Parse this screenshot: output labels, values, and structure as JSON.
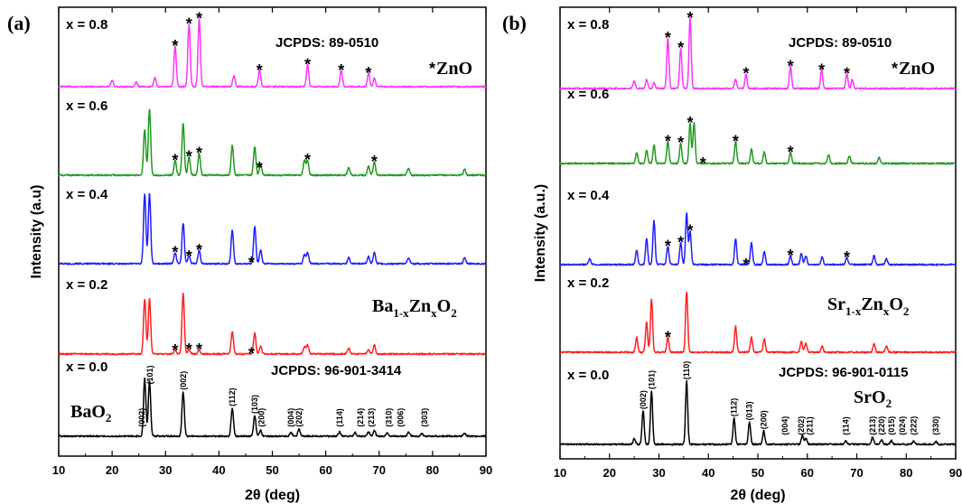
{
  "chart_data": [
    {
      "type": "line",
      "panel_label": "(a)",
      "ylabel": "Intensity (a.u)",
      "xlabel": "2θ (deg)",
      "xlim": [
        10,
        90
      ],
      "xticks": [
        10,
        20,
        30,
        40,
        50,
        60,
        70,
        80,
        90
      ],
      "ref_label": "JCPDS: 89-0510",
      "zno_label": "ZnO",
      "bottom_ref_label": "JCPDS: 96-901-3414",
      "phase_label": {
        "base": "BaO",
        "sub": "2"
      },
      "formula_label": {
        "base1": "Ba",
        "sub1": "1-x",
        "base2": "Zn",
        "sub2": "x",
        "base3": "O",
        "sub3": "2"
      },
      "series": [
        {
          "name": "x = 0.8",
          "color": "#ff33ff",
          "offset": 4,
          "scale": 1.0,
          "peaks": [
            [
              20.0,
              0.08
            ],
            [
              24.5,
              0.06
            ],
            [
              28.0,
              0.12
            ],
            [
              31.8,
              0.55
            ],
            [
              34.4,
              0.85
            ],
            [
              36.3,
              0.92
            ],
            [
              42.8,
              0.15
            ],
            [
              47.6,
              0.22
            ],
            [
              56.6,
              0.3
            ],
            [
              62.9,
              0.22
            ],
            [
              68.0,
              0.18
            ],
            [
              69.1,
              0.12
            ]
          ],
          "stars": [
            31.8,
            34.4,
            36.3,
            47.6,
            56.6,
            62.9,
            68.0
          ]
        },
        {
          "name": "x = 0.6",
          "color": "#1f9a1f",
          "offset": 3,
          "scale": 1.0,
          "peaks": [
            [
              26.1,
              0.62
            ],
            [
              27.0,
              0.9
            ],
            [
              31.8,
              0.2
            ],
            [
              33.3,
              0.7
            ],
            [
              34.4,
              0.25
            ],
            [
              36.3,
              0.3
            ],
            [
              42.5,
              0.4
            ],
            [
              46.7,
              0.38
            ],
            [
              47.8,
              0.15
            ],
            [
              56.0,
              0.2
            ],
            [
              56.6,
              0.2
            ],
            [
              64.3,
              0.1
            ],
            [
              68.0,
              0.12
            ],
            [
              69.1,
              0.18
            ],
            [
              75.5,
              0.1
            ],
            [
              86.0,
              0.08
            ]
          ],
          "stars": [
            31.8,
            34.4,
            36.3,
            47.6,
            56.6,
            69.1
          ]
        },
        {
          "name": "x = 0.4",
          "color": "#1f1fff",
          "offset": 2,
          "scale": 1.0,
          "peaks": [
            [
              26.1,
              0.95
            ],
            [
              27.0,
              0.95
            ],
            [
              31.8,
              0.15
            ],
            [
              33.3,
              0.55
            ],
            [
              34.4,
              0.1
            ],
            [
              36.3,
              0.18
            ],
            [
              42.5,
              0.45
            ],
            [
              46.7,
              0.5
            ],
            [
              47.8,
              0.18
            ],
            [
              56.0,
              0.12
            ],
            [
              56.6,
              0.15
            ],
            [
              64.3,
              0.08
            ],
            [
              68.0,
              0.1
            ],
            [
              69.1,
              0.15
            ],
            [
              75.5,
              0.08
            ],
            [
              86.0,
              0.08
            ]
          ],
          "stars": [
            31.8,
            34.4,
            36.3,
            46.1
          ]
        },
        {
          "name": "x = 0.2",
          "color": "#ff2020",
          "offset": 1,
          "scale": 1.0,
          "peaks": [
            [
              26.1,
              0.75
            ],
            [
              27.0,
              0.75
            ],
            [
              31.8,
              0.05
            ],
            [
              33.3,
              0.82
            ],
            [
              34.4,
              0.06
            ],
            [
              36.3,
              0.06
            ],
            [
              42.5,
              0.3
            ],
            [
              46.7,
              0.28
            ],
            [
              47.8,
              0.1
            ],
            [
              56.0,
              0.1
            ],
            [
              56.6,
              0.12
            ],
            [
              64.3,
              0.08
            ],
            [
              68.0,
              0.06
            ],
            [
              69.1,
              0.12
            ]
          ],
          "stars": [
            31.8,
            34.4,
            36.3,
            46.1
          ]
        },
        {
          "name": "x = 0.0",
          "color": "#000000",
          "offset": 0,
          "scale": 1.0,
          "peaks": [
            [
              26.1,
              0.78
            ],
            [
              27.0,
              0.75
            ],
            [
              33.3,
              0.6
            ],
            [
              42.5,
              0.38
            ],
            [
              46.7,
              0.28
            ],
            [
              47.8,
              0.08
            ],
            [
              53.5,
              0.05
            ],
            [
              55.0,
              0.1
            ],
            [
              62.6,
              0.06
            ],
            [
              65.5,
              0.05
            ],
            [
              68.0,
              0.06
            ],
            [
              69.1,
              0.08
            ],
            [
              71.5,
              0.05
            ],
            [
              75.5,
              0.05
            ],
            [
              78.0,
              0.04
            ],
            [
              86.0,
              0.04
            ]
          ],
          "stars": []
        }
      ],
      "hkl_labels": [
        {
          "text": "(002)",
          "x": 25.6
        },
        {
          "text": "(101)",
          "x": 27.1
        },
        {
          "text": "(002)",
          "x": 33.3
        },
        {
          "text": "(112)",
          "x": 42.5
        },
        {
          "text": "(103)",
          "x": 46.7
        },
        {
          "text": "(200)",
          "x": 48.0
        },
        {
          "text": "(004)",
          "x": 53.5
        },
        {
          "text": "(202)",
          "x": 55.0
        },
        {
          "text": "(114)",
          "x": 62.6
        },
        {
          "text": "(214)",
          "x": 66.5
        },
        {
          "text": "(213)",
          "x": 68.5
        },
        {
          "text": "(310)",
          "x": 71.8
        },
        {
          "text": "(006)",
          "x": 74.0
        },
        {
          "text": "(303)",
          "x": 78.5
        }
      ]
    },
    {
      "type": "line",
      "panel_label": "(b)",
      "ylabel": "Intensity (a.u.)",
      "xlabel": "2θ (deg)",
      "xlim": [
        10,
        90
      ],
      "xticks": [
        10,
        20,
        30,
        40,
        50,
        60,
        70,
        80,
        90
      ],
      "ref_label": "JCPDS: 89-0510",
      "zno_label": "ZnO",
      "bottom_ref_label": "JCPDS: 96-901-0115",
      "phase_label": {
        "base": "SrO",
        "sub": "2"
      },
      "formula_label": {
        "base1": "Sr",
        "sub1": "1-x",
        "base2": "Zn",
        "sub2": "x",
        "base3": "O",
        "sub3": "2"
      },
      "series": [
        {
          "name": "x = 0.8",
          "color": "#ff33ff",
          "offset": 4,
          "scale": 1.0,
          "peaks": [
            [
              25.0,
              0.1
            ],
            [
              27.5,
              0.12
            ],
            [
              29.0,
              0.08
            ],
            [
              31.8,
              0.68
            ],
            [
              34.4,
              0.55
            ],
            [
              36.3,
              0.95
            ],
            [
              45.5,
              0.12
            ],
            [
              47.6,
              0.2
            ],
            [
              56.6,
              0.3
            ],
            [
              62.9,
              0.25
            ],
            [
              68.0,
              0.2
            ],
            [
              69.1,
              0.12
            ]
          ],
          "stars": [
            31.8,
            34.4,
            36.3,
            47.6,
            56.6,
            62.9,
            68.0
          ]
        },
        {
          "name": "x = 0.6",
          "color": "#1f9a1f",
          "offset": 3,
          "scale": 1.0,
          "peaks": [
            [
              25.5,
              0.15
            ],
            [
              27.5,
              0.18
            ],
            [
              29.0,
              0.25
            ],
            [
              31.8,
              0.3
            ],
            [
              34.4,
              0.28
            ],
            [
              36.3,
              0.55
            ],
            [
              37.1,
              0.55
            ],
            [
              45.5,
              0.3
            ],
            [
              48.7,
              0.2
            ],
            [
              51.3,
              0.15
            ],
            [
              56.6,
              0.15
            ],
            [
              64.3,
              0.12
            ],
            [
              68.5,
              0.1
            ],
            [
              74.5,
              0.08
            ]
          ],
          "stars": [
            31.8,
            34.4,
            36.3,
            38.9,
            45.5,
            56.6
          ]
        },
        {
          "name": "x = 0.4",
          "color": "#1f1fff",
          "offset": 2,
          "scale": 1.0,
          "peaks": [
            [
              16.0,
              0.08
            ],
            [
              25.5,
              0.2
            ],
            [
              27.5,
              0.35
            ],
            [
              29.0,
              0.6
            ],
            [
              31.8,
              0.25
            ],
            [
              34.4,
              0.3
            ],
            [
              35.6,
              0.7
            ],
            [
              36.3,
              0.45
            ],
            [
              45.5,
              0.35
            ],
            [
              48.7,
              0.3
            ],
            [
              51.3,
              0.18
            ],
            [
              56.6,
              0.12
            ],
            [
              58.8,
              0.15
            ],
            [
              59.7,
              0.12
            ],
            [
              63.0,
              0.1
            ],
            [
              68.0,
              0.1
            ],
            [
              73.5,
              0.12
            ],
            [
              76.0,
              0.08
            ]
          ],
          "stars": [
            31.8,
            34.4,
            36.3,
            47.6,
            56.6,
            68.0
          ]
        },
        {
          "name": "x = 0.2",
          "color": "#ff2020",
          "offset": 1,
          "scale": 1.0,
          "peaks": [
            [
              25.5,
              0.2
            ],
            [
              27.5,
              0.4
            ],
            [
              28.5,
              0.72
            ],
            [
              31.8,
              0.2
            ],
            [
              35.6,
              0.82
            ],
            [
              45.5,
              0.35
            ],
            [
              48.7,
              0.2
            ],
            [
              51.3,
              0.18
            ],
            [
              58.8,
              0.15
            ],
            [
              59.7,
              0.12
            ],
            [
              63.0,
              0.08
            ],
            [
              73.5,
              0.12
            ],
            [
              76.0,
              0.08
            ]
          ],
          "stars": [
            31.8
          ]
        },
        {
          "name": "x = 0.0",
          "color": "#000000",
          "offset": 0,
          "scale": 1.0,
          "peaks": [
            [
              25.0,
              0.08
            ],
            [
              26.8,
              0.45
            ],
            [
              28.5,
              0.72
            ],
            [
              35.6,
              0.85
            ],
            [
              45.2,
              0.35
            ],
            [
              48.3,
              0.3
            ],
            [
              51.2,
              0.18
            ],
            [
              59.0,
              0.12
            ],
            [
              59.7,
              0.08
            ],
            [
              67.8,
              0.05
            ],
            [
              73.2,
              0.1
            ],
            [
              75.0,
              0.06
            ],
            [
              77.0,
              0.05
            ],
            [
              81.5,
              0.05
            ],
            [
              86.0,
              0.04
            ]
          ],
          "stars": []
        }
      ],
      "hkl_labels": [
        {
          "text": "(002)",
          "x": 26.8
        },
        {
          "text": "(101)",
          "x": 28.5
        },
        {
          "text": "(110)",
          "x": 35.6
        },
        {
          "text": "(112)",
          "x": 45.2
        },
        {
          "text": "(013)",
          "x": 48.3
        },
        {
          "text": "(200)",
          "x": 51.2
        },
        {
          "text": "(004)",
          "x": 55.5
        },
        {
          "text": "(202)",
          "x": 58.8
        },
        {
          "text": "(211)",
          "x": 60.5
        },
        {
          "text": "(114)",
          "x": 67.8
        },
        {
          "text": "(213)",
          "x": 73.2
        },
        {
          "text": "(220)",
          "x": 75.0
        },
        {
          "text": "(015)",
          "x": 77.0
        },
        {
          "text": "(024)",
          "x": 79.2
        },
        {
          "text": "(222)",
          "x": 81.5
        },
        {
          "text": "(330)",
          "x": 86.0
        }
      ]
    }
  ]
}
